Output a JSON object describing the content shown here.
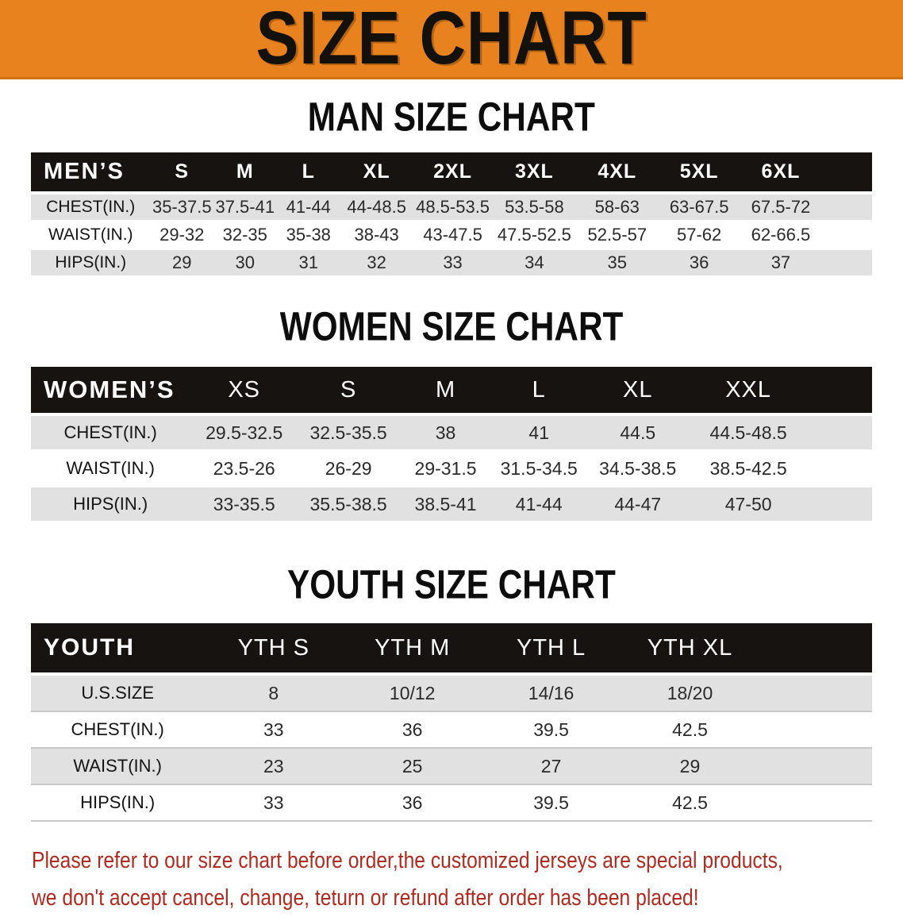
{
  "banner": {
    "title": "SIZE CHART"
  },
  "colors": {
    "banner_bg": "#E8821E",
    "header_row_bg": "#171310",
    "stripe_row_bg": "#E1E1E1",
    "footer_text": "#B02A20"
  },
  "sections": [
    {
      "heading": "MAN SIZE CHART",
      "table": {
        "header": [
          "MEN’S",
          "S",
          "M",
          "L",
          "XL",
          "2XL",
          "3XL",
          "4XL",
          "5XL",
          "6XL"
        ],
        "rows": [
          [
            "CHEST(IN.)",
            "35-37.5",
            "37.5-41",
            "41-44",
            "44-48.5",
            "48.5-53.5",
            "53.5-58",
            "58-63",
            "63-67.5",
            "67.5-72"
          ],
          [
            "WAIST(IN.)",
            "29-32",
            "32-35",
            "35-38",
            "38-43",
            "43-47.5",
            "47.5-52.5",
            "52.5-57",
            "57-62",
            "62-66.5"
          ],
          [
            "HIPS(IN.)",
            "29",
            "30",
            "31",
            "32",
            "33",
            "34",
            "35",
            "36",
            "37"
          ]
        ]
      }
    },
    {
      "heading": "WOMEN SIZE CHART",
      "table": {
        "header": [
          "WOMEN’S",
          "XS",
          "S",
          "M",
          "L",
          "XL",
          "XXL"
        ],
        "rows": [
          [
            "CHEST(IN.)",
            "29.5-32.5",
            "32.5-35.5",
            "38",
            "41",
            "44.5",
            "44.5-48.5"
          ],
          [
            "WAIST(IN.)",
            "23.5-26",
            "26-29",
            "29-31.5",
            "31.5-34.5",
            "34.5-38.5",
            "38.5-42.5"
          ],
          [
            "HIPS(IN.)",
            "33-35.5",
            "35.5-38.5",
            "38.5-41",
            "41-44",
            "44-47",
            "47-50"
          ]
        ]
      }
    },
    {
      "heading": "YOUTH SIZE CHART",
      "table": {
        "header": [
          "YOUTH",
          "YTH S",
          "YTH M",
          "YTH L",
          "YTH XL"
        ],
        "rows": [
          [
            "U.S.SIZE",
            "8",
            "10/12",
            "14/16",
            "18/20"
          ],
          [
            "CHEST(IN.)",
            "33",
            "36",
            "39.5",
            "42.5"
          ],
          [
            "WAIST(IN.)",
            "23",
            "25",
            "27",
            "29"
          ],
          [
            "HIPS(IN.)",
            "33",
            "36",
            "39.5",
            "42.5"
          ]
        ]
      }
    }
  ],
  "footer": {
    "line1": "Please refer to our size chart before order,the customized jerseys are special products,",
    "line2": "we don't accept cancel, change, teturn or refund after order has been placed!"
  }
}
